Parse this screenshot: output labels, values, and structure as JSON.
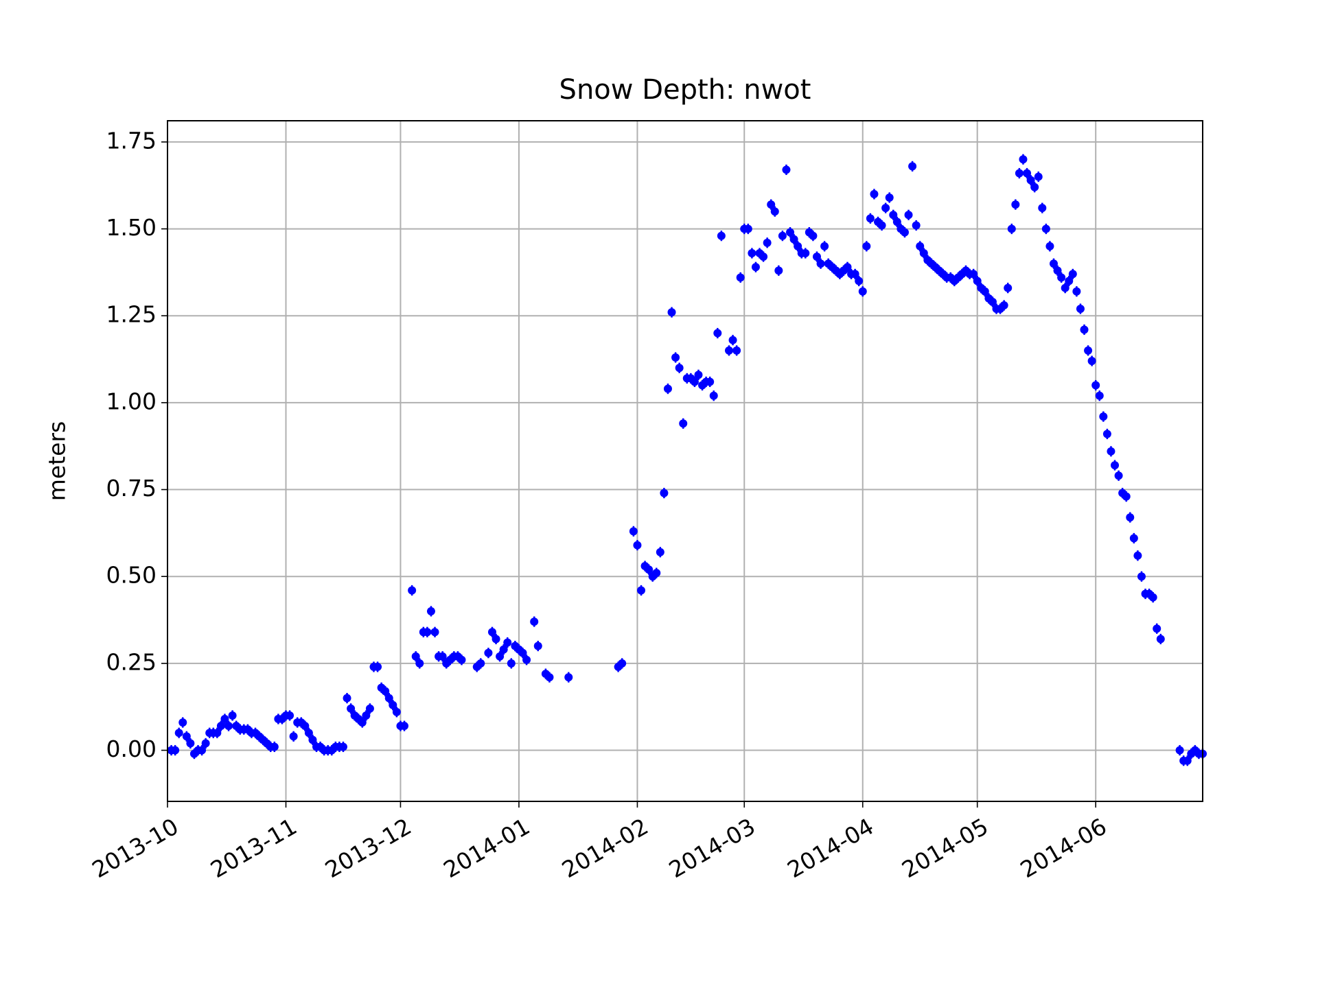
{
  "chart_data": {
    "type": "scatter",
    "title": "Snow Depth: nwot",
    "y_label": "meters",
    "grid": true,
    "xlim": [
      15979,
      16250
    ],
    "xticks": [
      {
        "value": 15979,
        "label": "2013-10"
      },
      {
        "value": 16010,
        "label": "2013-11"
      },
      {
        "value": 16040,
        "label": "2013-12"
      },
      {
        "value": 16071,
        "label": "2014-01"
      },
      {
        "value": 16102,
        "label": "2014-02"
      },
      {
        "value": 16130,
        "label": "2014-03"
      },
      {
        "value": 16161,
        "label": "2014-04"
      },
      {
        "value": 16191,
        "label": "2014-05"
      },
      {
        "value": 16222,
        "label": "2014-06"
      }
    ],
    "ylim": [
      -0.147,
      1.811
    ],
    "yticks": [
      {
        "value": 0,
        "label": "0.00"
      },
      {
        "value": 0.25,
        "label": "0.25"
      },
      {
        "value": 0.5,
        "label": "0.50"
      },
      {
        "value": 0.75,
        "label": "0.75"
      },
      {
        "value": 1,
        "label": "1.00"
      },
      {
        "value": 1.25,
        "label": "1.25"
      },
      {
        "value": 1.5,
        "label": "1.50"
      },
      {
        "value": 1.75,
        "label": "1.75"
      }
    ],
    "series": [
      {
        "color": "#0000ff",
        "error": 0.015,
        "x": [
          15980,
          15981,
          15982,
          15983,
          15984,
          15985,
          15986,
          15987,
          15988,
          15989,
          15990,
          15991,
          15992,
          15993,
          15994,
          15995,
          15996,
          15997,
          15998,
          15999,
          16000,
          16001,
          16002,
          16003,
          16004,
          16005,
          16006,
          16007,
          16008,
          16009,
          16010,
          16011,
          16012,
          16013,
          16014,
          16015,
          16016,
          16017,
          16018,
          16019,
          16020,
          16021,
          16022,
          16023,
          16024,
          16025,
          16026,
          16027,
          16028,
          16029,
          16030,
          16031,
          16032,
          16033,
          16034,
          16035,
          16036,
          16037,
          16038,
          16039,
          16040,
          16041,
          16043,
          16044,
          16045,
          16046,
          16047,
          16048,
          16049,
          16050,
          16051,
          16052,
          16053,
          16054,
          16055,
          16056,
          16060,
          16061,
          16063,
          16064,
          16065,
          16066,
          16067,
          16068,
          16069,
          16070,
          16071,
          16072,
          16073,
          16075,
          16076,
          16078,
          16079,
          16084,
          16097,
          16098,
          16101,
          16102,
          16103,
          16104,
          16105,
          16106,
          16107,
          16108,
          16109,
          16110,
          16111,
          16112,
          16113,
          16114,
          16115,
          16116,
          16117,
          16118,
          16119,
          16120,
          16121,
          16122,
          16123,
          16124,
          16126,
          16127,
          16128,
          16129,
          16130,
          16131,
          16132,
          16133,
          16134,
          16135,
          16136,
          16137,
          16138,
          16139,
          16140,
          16141,
          16142,
          16143,
          16144,
          16145,
          16146,
          16147,
          16148,
          16149,
          16150,
          16151,
          16152,
          16153,
          16154,
          16155,
          16156,
          16157,
          16158,
          16159,
          16160,
          16161,
          16162,
          16163,
          16164,
          16165,
          16166,
          16167,
          16168,
          16169,
          16170,
          16171,
          16172,
          16173,
          16174,
          16175,
          16176,
          16177,
          16178,
          16179,
          16180,
          16181,
          16182,
          16183,
          16184,
          16185,
          16186,
          16187,
          16188,
          16189,
          16190,
          16191,
          16192,
          16193,
          16194,
          16195,
          16196,
          16197,
          16198,
          16199,
          16200,
          16201,
          16202,
          16203,
          16204,
          16205,
          16206,
          16207,
          16208,
          16209,
          16210,
          16211,
          16212,
          16213,
          16214,
          16215,
          16216,
          16217,
          16218,
          16219,
          16220,
          16221,
          16222,
          16223,
          16224,
          16225,
          16226,
          16227,
          16228,
          16229,
          16230,
          16231,
          16232,
          16233,
          16234,
          16235,
          16236,
          16237,
          16238,
          16239,
          16244,
          16245,
          16246,
          16247,
          16248,
          16249,
          16250
        ],
        "values": [
          0.0,
          0.0,
          0.05,
          0.08,
          0.04,
          0.02,
          -0.01,
          0.0,
          0.0,
          0.02,
          0.05,
          0.05,
          0.05,
          0.07,
          0.09,
          0.07,
          0.1,
          0.07,
          0.06,
          0.06,
          0.06,
          0.05,
          0.05,
          0.04,
          0.03,
          0.02,
          0.01,
          0.01,
          0.09,
          0.09,
          0.1,
          0.1,
          0.04,
          0.08,
          0.08,
          0.07,
          0.05,
          0.03,
          0.01,
          0.01,
          0.0,
          0.0,
          0.0,
          0.01,
          0.01,
          0.01,
          0.15,
          0.12,
          0.1,
          0.09,
          0.08,
          0.1,
          0.12,
          0.24,
          0.24,
          0.18,
          0.17,
          0.15,
          0.13,
          0.11,
          0.07,
          0.07,
          0.46,
          0.27,
          0.25,
          0.34,
          0.34,
          0.4,
          0.34,
          0.27,
          0.27,
          0.25,
          0.26,
          0.27,
          0.27,
          0.26,
          0.24,
          0.25,
          0.28,
          0.34,
          0.32,
          0.27,
          0.29,
          0.31,
          0.25,
          0.3,
          0.29,
          0.28,
          0.26,
          0.37,
          0.3,
          0.22,
          0.21,
          0.21,
          0.24,
          0.25,
          0.63,
          0.59,
          0.46,
          0.53,
          0.52,
          0.5,
          0.51,
          0.57,
          0.74,
          1.04,
          1.26,
          1.13,
          1.1,
          0.94,
          1.07,
          1.07,
          1.06,
          1.08,
          1.05,
          1.06,
          1.06,
          1.02,
          1.2,
          1.48,
          1.15,
          1.18,
          1.15,
          1.36,
          1.5,
          1.5,
          1.43,
          1.39,
          1.43,
          1.42,
          1.46,
          1.57,
          1.55,
          1.38,
          1.48,
          1.67,
          1.49,
          1.47,
          1.45,
          1.43,
          1.43,
          1.49,
          1.48,
          1.42,
          1.4,
          1.45,
          1.4,
          1.39,
          1.38,
          1.37,
          1.38,
          1.39,
          1.37,
          1.37,
          1.35,
          1.32,
          1.45,
          1.53,
          1.6,
          1.52,
          1.51,
          1.56,
          1.59,
          1.54,
          1.52,
          1.5,
          1.49,
          1.54,
          1.68,
          1.51,
          1.45,
          1.43,
          1.41,
          1.4,
          1.39,
          1.38,
          1.37,
          1.36,
          1.36,
          1.35,
          1.36,
          1.37,
          1.38,
          1.37,
          1.37,
          1.35,
          1.33,
          1.32,
          1.3,
          1.29,
          1.27,
          1.27,
          1.28,
          1.33,
          1.5,
          1.57,
          1.66,
          1.7,
          1.66,
          1.64,
          1.62,
          1.65,
          1.56,
          1.5,
          1.45,
          1.4,
          1.38,
          1.36,
          1.33,
          1.35,
          1.37,
          1.32,
          1.27,
          1.21,
          1.15,
          1.12,
          1.05,
          1.02,
          0.96,
          0.91,
          0.86,
          0.82,
          0.79,
          0.74,
          0.73,
          0.67,
          0.61,
          0.56,
          0.5,
          0.45,
          0.45,
          0.44,
          0.35,
          0.32,
          0.0,
          -0.03,
          -0.03,
          -0.01,
          0.0,
          -0.01,
          -0.01
        ]
      }
    ]
  }
}
